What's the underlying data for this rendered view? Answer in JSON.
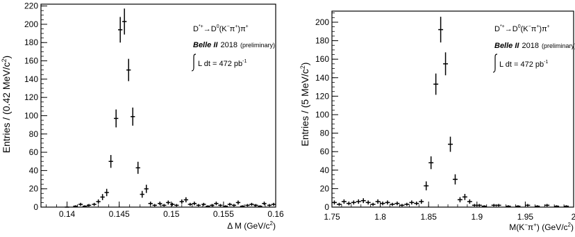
{
  "chart_data": [
    {
      "type": "scatter",
      "style": "histogram with error bars",
      "xlabel_main": "Δ M (GeV/c",
      "xlabel_sup": "2",
      "xlabel_tail": ")",
      "ylabel_main": "Entries / (0.42 MeV/c",
      "ylabel_sup": "2",
      "ylabel_tail": ")",
      "xlim": [
        0.1375,
        0.16
      ],
      "ylim": [
        0,
        222
      ],
      "xticks": [
        0.14,
        0.145,
        0.15,
        0.155,
        0.16
      ],
      "xtick_labels": [
        "0.14",
        "0.145",
        "0.15",
        "0.155",
        "0.16"
      ],
      "yticks": [
        0,
        20,
        40,
        60,
        80,
        100,
        120,
        140,
        160,
        180,
        200,
        220
      ],
      "ytick_labels": [
        "0",
        "20",
        "40",
        "60",
        "80",
        "100",
        "120",
        "140",
        "160",
        "180",
        "200",
        "220"
      ],
      "x_minor_step": 0.001,
      "y_minor_step": 5,
      "bin_width": 0.00042,
      "annotations": {
        "decay": "D*+→D0(K−π+)π+",
        "belle": "Belle II",
        "year": "2018",
        "prelim": "(preliminary)",
        "lumi_label": "L dt = 472 pb",
        "lumi_sup": "-1"
      },
      "points": [
        {
          "x": 0.14,
          "y": 0,
          "err": 0
        },
        {
          "x": 0.1408,
          "y": 1,
          "err": 1
        },
        {
          "x": 0.1413,
          "y": 3,
          "err": 1.7
        },
        {
          "x": 0.1417,
          "y": 1,
          "err": 1
        },
        {
          "x": 0.1421,
          "y": 2,
          "err": 1.4
        },
        {
          "x": 0.1426,
          "y": 3,
          "err": 1.7
        },
        {
          "x": 0.143,
          "y": 6,
          "err": 2.4
        },
        {
          "x": 0.1434,
          "y": 11,
          "err": 3.3
        },
        {
          "x": 0.1438,
          "y": 16,
          "err": 4
        },
        {
          "x": 0.1442,
          "y": 50,
          "err": 7
        },
        {
          "x": 0.1447,
          "y": 97,
          "err": 9.8
        },
        {
          "x": 0.1451,
          "y": 194,
          "err": 14
        },
        {
          "x": 0.1455,
          "y": 203,
          "err": 14.2
        },
        {
          "x": 0.1459,
          "y": 150,
          "err": 12.2
        },
        {
          "x": 0.1463,
          "y": 99,
          "err": 9.9
        },
        {
          "x": 0.1468,
          "y": 43,
          "err": 6.6
        },
        {
          "x": 0.1472,
          "y": 14,
          "err": 3.7
        },
        {
          "x": 0.1476,
          "y": 20,
          "err": 4.5
        },
        {
          "x": 0.148,
          "y": 4,
          "err": 2
        },
        {
          "x": 0.1484,
          "y": 2,
          "err": 1.4
        },
        {
          "x": 0.1489,
          "y": 4,
          "err": 2
        },
        {
          "x": 0.1493,
          "y": 2,
          "err": 1.4
        },
        {
          "x": 0.1497,
          "y": 5,
          "err": 2.2
        },
        {
          "x": 0.1501,
          "y": 3,
          "err": 1.7
        },
        {
          "x": 0.1505,
          "y": 2,
          "err": 1.4
        },
        {
          "x": 0.151,
          "y": 6,
          "err": 2.4
        },
        {
          "x": 0.1514,
          "y": 8,
          "err": 2.8
        },
        {
          "x": 0.1518,
          "y": 3,
          "err": 1.7
        },
        {
          "x": 0.1522,
          "y": 4,
          "err": 2
        },
        {
          "x": 0.1526,
          "y": 2,
          "err": 1.4
        },
        {
          "x": 0.1531,
          "y": 3,
          "err": 1.7
        },
        {
          "x": 0.1535,
          "y": 1,
          "err": 1
        },
        {
          "x": 0.1539,
          "y": 2,
          "err": 1.4
        },
        {
          "x": 0.1543,
          "y": 4,
          "err": 2
        },
        {
          "x": 0.1547,
          "y": 2,
          "err": 1.4
        },
        {
          "x": 0.1552,
          "y": 1,
          "err": 1
        },
        {
          "x": 0.1556,
          "y": 3,
          "err": 1.7
        },
        {
          "x": 0.156,
          "y": 2,
          "err": 1.4
        },
        {
          "x": 0.1564,
          "y": 5,
          "err": 2.2
        },
        {
          "x": 0.1568,
          "y": 1,
          "err": 1
        },
        {
          "x": 0.1573,
          "y": 2,
          "err": 1.4
        },
        {
          "x": 0.1577,
          "y": 3,
          "err": 1.7
        },
        {
          "x": 0.1581,
          "y": 2,
          "err": 1.4
        },
        {
          "x": 0.1585,
          "y": 1,
          "err": 1
        },
        {
          "x": 0.1589,
          "y": 4,
          "err": 2
        },
        {
          "x": 0.1594,
          "y": 2,
          "err": 1.4
        },
        {
          "x": 0.1598,
          "y": 3,
          "err": 1.7
        }
      ]
    },
    {
      "type": "scatter",
      "style": "histogram with error bars",
      "xlabel_main": "M(K",
      "xlabel_mid": "π",
      "xlabel_tail": ") (GeV/c",
      "xlabel_sup": "2",
      "xlabel_end": ")",
      "ylabel_main": "Entries / (5 MeV/c",
      "ylabel_sup": "2",
      "ylabel_tail": ")",
      "xlim": [
        1.75,
        2.0
      ],
      "ylim": [
        0,
        212
      ],
      "xticks": [
        1.75,
        1.8,
        1.85,
        1.9,
        1.95,
        2.0
      ],
      "xtick_labels": [
        "1.75",
        "1.8",
        "1.85",
        "1.9",
        "1.95",
        "2"
      ],
      "yticks": [
        0,
        20,
        40,
        60,
        80,
        100,
        120,
        140,
        160,
        180,
        200
      ],
      "ytick_labels": [
        "0",
        "20",
        "40",
        "60",
        "80",
        "100",
        "120",
        "140",
        "160",
        "180",
        "200"
      ],
      "x_minor_step": 0.01,
      "y_minor_step": 5,
      "bin_width": 0.005,
      "annotations": {
        "decay": "D*+→D0(K−π+)π+",
        "belle": "Belle II",
        "year": "2018",
        "prelim": "(preliminary)",
        "lumi_label": "L dt = 472 pb",
        "lumi_sup": "-1"
      },
      "points": [
        {
          "x": 1.7525,
          "y": 5,
          "err": 2.2
        },
        {
          "x": 1.7575,
          "y": 3,
          "err": 1.7
        },
        {
          "x": 1.7625,
          "y": 6,
          "err": 2.4
        },
        {
          "x": 1.7675,
          "y": 4,
          "err": 2
        },
        {
          "x": 1.7725,
          "y": 5,
          "err": 2.2
        },
        {
          "x": 1.7775,
          "y": 6,
          "err": 2.4
        },
        {
          "x": 1.7825,
          "y": 7,
          "err": 2.6
        },
        {
          "x": 1.7875,
          "y": 5,
          "err": 2.2
        },
        {
          "x": 1.7925,
          "y": 3,
          "err": 1.7
        },
        {
          "x": 1.7975,
          "y": 6,
          "err": 2.4
        },
        {
          "x": 1.8025,
          "y": 4,
          "err": 2
        },
        {
          "x": 1.8075,
          "y": 5,
          "err": 2.2
        },
        {
          "x": 1.8125,
          "y": 3,
          "err": 1.7
        },
        {
          "x": 1.8175,
          "y": 4,
          "err": 2
        },
        {
          "x": 1.8225,
          "y": 2,
          "err": 1.4
        },
        {
          "x": 1.8275,
          "y": 3,
          "err": 1.7
        },
        {
          "x": 1.8325,
          "y": 5,
          "err": 2.2
        },
        {
          "x": 1.8375,
          "y": 4,
          "err": 2
        },
        {
          "x": 1.8425,
          "y": 6,
          "err": 2.4
        },
        {
          "x": 1.8475,
          "y": 23,
          "err": 4.8
        },
        {
          "x": 1.8525,
          "y": 48,
          "err": 6.9
        },
        {
          "x": 1.8575,
          "y": 133,
          "err": 11.5
        },
        {
          "x": 1.8625,
          "y": 192,
          "err": 13.9
        },
        {
          "x": 1.8675,
          "y": 155,
          "err": 12.4
        },
        {
          "x": 1.8725,
          "y": 68,
          "err": 8.2
        },
        {
          "x": 1.8775,
          "y": 30,
          "err": 5.5
        },
        {
          "x": 1.8825,
          "y": 8,
          "err": 2.8
        },
        {
          "x": 1.8875,
          "y": 11,
          "err": 3.3
        },
        {
          "x": 1.8925,
          "y": 6,
          "err": 2.4
        },
        {
          "x": 1.8975,
          "y": 2,
          "err": 1.4
        },
        {
          "x": 1.9025,
          "y": 2,
          "err": 1.4
        },
        {
          "x": 1.9075,
          "y": 1,
          "err": 1
        },
        {
          "x": 1.9175,
          "y": 2,
          "err": 1.4
        },
        {
          "x": 1.9225,
          "y": 2,
          "err": 1.4
        },
        {
          "x": 1.9325,
          "y": 1,
          "err": 1
        },
        {
          "x": 1.9425,
          "y": 1,
          "err": 1
        },
        {
          "x": 1.9525,
          "y": 2,
          "err": 1.4
        },
        {
          "x": 1.9625,
          "y": 1,
          "err": 1
        },
        {
          "x": 1.9725,
          "y": 2,
          "err": 1.4
        },
        {
          "x": 1.9825,
          "y": 1,
          "err": 1
        },
        {
          "x": 1.9925,
          "y": 1,
          "err": 1
        }
      ]
    }
  ]
}
